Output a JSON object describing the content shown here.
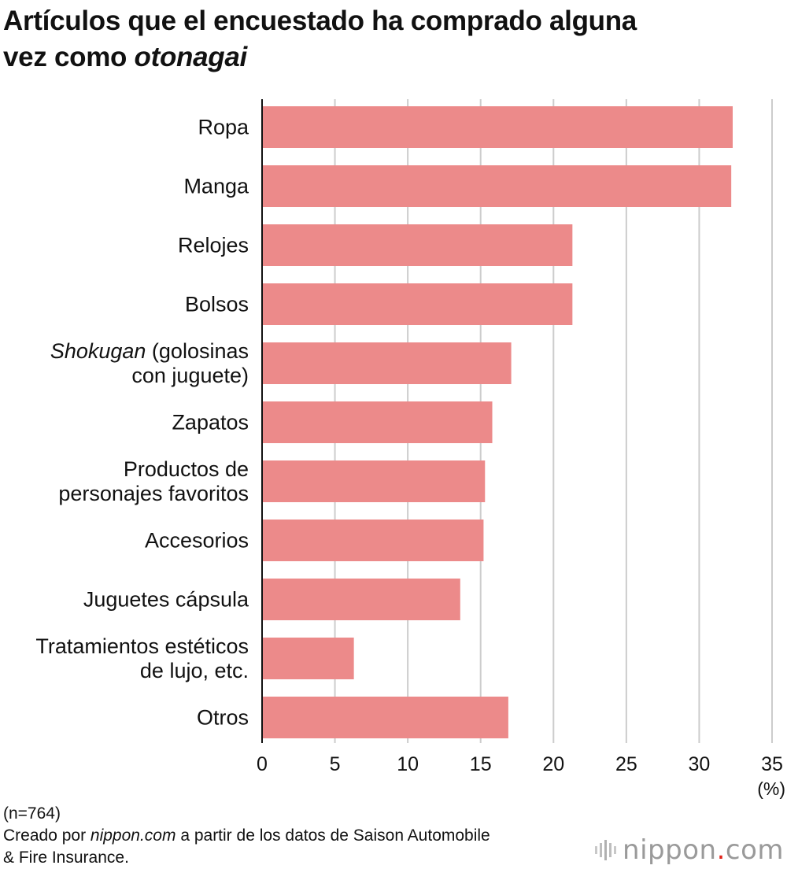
{
  "title_line1": "Artículos que el encuestado ha comprado alguna",
  "title_line2_prefix": "vez como ",
  "title_line2_italic": "otonagai",
  "chart_data": {
    "type": "bar",
    "orientation": "horizontal",
    "categories": [
      [
        "Ropa"
      ],
      [
        "Manga"
      ],
      [
        "Relojes"
      ],
      [
        "Bolsos"
      ],
      [
        "Shokugan (golosinas",
        "con juguete)"
      ],
      [
        "Zapatos"
      ],
      [
        "Productos de",
        "personajes favoritos"
      ],
      [
        "Accesorios"
      ],
      [
        "Juguetes cápsula"
      ],
      [
        "Tratamientos estéticos",
        "de lujo, etc."
      ],
      [
        "Otros"
      ]
    ],
    "italic_word": "Shokugan",
    "values": [
      32.3,
      32.2,
      21.3,
      21.3,
      17.1,
      15.8,
      15.3,
      15.2,
      13.6,
      6.3,
      16.9
    ],
    "xlim": [
      0,
      35
    ],
    "xticks": [
      0,
      5,
      10,
      15,
      20,
      25,
      30,
      35
    ],
    "unit_label": "(%)",
    "bar_color": "#ec8a8a",
    "grid_color": "#cccccc",
    "grid": true
  },
  "footer": {
    "sample": "(n=764)",
    "source_prefix": "Creado por ",
    "source_italic": "nippon.com",
    "source_rest": " a partir de los datos de Saison Automobile",
    "source_line2": "& Fire Insurance."
  },
  "brand": {
    "name": "nippon",
    "dot": ".",
    "tld": "com"
  }
}
